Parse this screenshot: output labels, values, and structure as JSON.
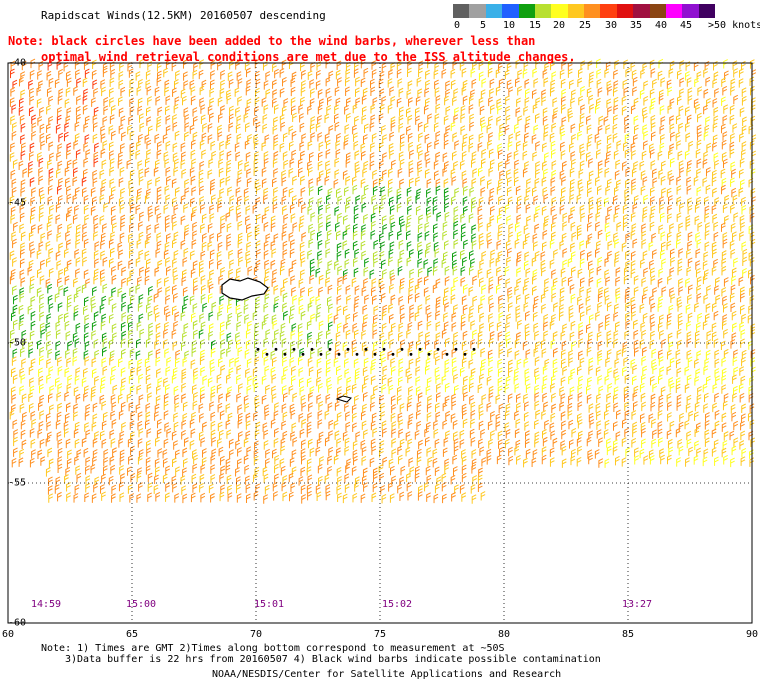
{
  "header": {
    "title": "Rapidscat Winds(12.5KM) 20160507 descending",
    "note_line1": "Note: black circles have been added to the wind barbs, wherever less than",
    "note_line2": "optimal wind retrieval conditions are met due to the ISS altitude changes."
  },
  "color_scale": {
    "colors": [
      "#606060",
      "#a0a0a0",
      "#3ab0e8",
      "#2060ff",
      "#10a010",
      "#b8e030",
      "#ffff20",
      "#ffc820",
      "#ff9020",
      "#ff4010",
      "#e01010",
      "#a01040",
      "#8b4513",
      "#ff00ff",
      "#9010d0",
      "#400060"
    ],
    "labels": [
      "0",
      "5",
      "10",
      "15",
      "20",
      "25",
      "30",
      "35",
      "40",
      "45",
      ">50 knots"
    ]
  },
  "axes": {
    "lon_labels": [
      "60",
      "65",
      "70",
      "75",
      "80",
      "85",
      "90"
    ],
    "lat_labels": [
      "-40",
      "-45",
      "-50",
      "-55",
      "-60"
    ]
  },
  "time_labels": [
    "14:59",
    "15:00",
    "15:01",
    "15:02",
    "13:27"
  ],
  "footer": {
    "line1": "Note: 1) Times are GMT 2)Times along bottom correspond to measurement at ~50S",
    "line2": "3)Data buffer is 22 hrs from 20160507 4) Black wind barbs indicate possible contamination",
    "credit": "NOAA/NESDIS/Center for Satellite Applications and Research"
  }
}
